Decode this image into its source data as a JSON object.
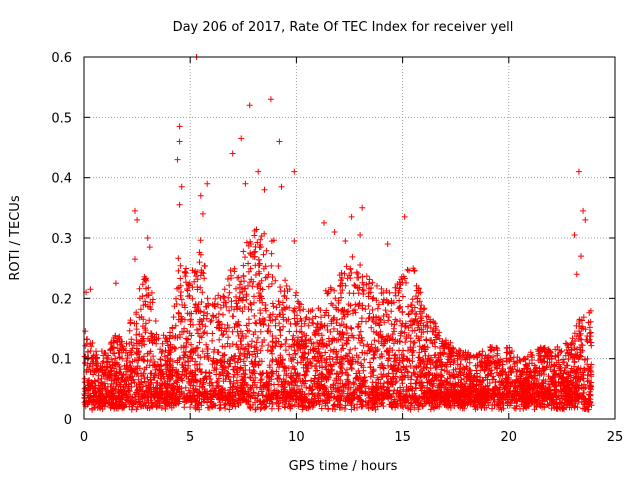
{
  "chart_data": {
    "type": "scatter",
    "title": "Day 206 of 2017, Rate Of TEC Index for receiver yell",
    "xlabel": "GPS time / hours",
    "ylabel": "ROTI / TECUs",
    "xlim": [
      0,
      25
    ],
    "ylim": [
      0,
      0.6
    ],
    "xticks": [
      0,
      5,
      10,
      15,
      20,
      25
    ],
    "yticks": [
      0,
      0.1,
      0.2,
      0.3,
      0.4,
      0.5,
      0.6
    ],
    "grid": true,
    "marker": "+",
    "color": "#ff0000",
    "outliers": [
      {
        "x": 0.1,
        "y": 0.21
      },
      {
        "x": 0.3,
        "y": 0.215
      },
      {
        "x": 1.5,
        "y": 0.225
      },
      {
        "x": 2.4,
        "y": 0.345
      },
      {
        "x": 2.5,
        "y": 0.33
      },
      {
        "x": 2.4,
        "y": 0.265
      },
      {
        "x": 3.0,
        "y": 0.3
      },
      {
        "x": 3.1,
        "y": 0.285
      },
      {
        "x": 4.5,
        "y": 0.485
      },
      {
        "x": 4.5,
        "y": 0.46
      },
      {
        "x": 4.4,
        "y": 0.43
      },
      {
        "x": 4.6,
        "y": 0.385
      },
      {
        "x": 4.5,
        "y": 0.355
      },
      {
        "x": 5.3,
        "y": 0.6
      },
      {
        "x": 5.5,
        "y": 0.37
      },
      {
        "x": 5.8,
        "y": 0.39
      },
      {
        "x": 5.6,
        "y": 0.34
      },
      {
        "x": 7.0,
        "y": 0.44
      },
      {
        "x": 7.4,
        "y": 0.465
      },
      {
        "x": 7.8,
        "y": 0.52
      },
      {
        "x": 7.6,
        "y": 0.39
      },
      {
        "x": 8.2,
        "y": 0.41
      },
      {
        "x": 8.8,
        "y": 0.53
      },
      {
        "x": 9.2,
        "y": 0.46
      },
      {
        "x": 9.3,
        "y": 0.385
      },
      {
        "x": 8.5,
        "y": 0.38
      },
      {
        "x": 9.9,
        "y": 0.41
      },
      {
        "x": 9.9,
        "y": 0.295
      },
      {
        "x": 11.3,
        "y": 0.325
      },
      {
        "x": 11.8,
        "y": 0.31
      },
      {
        "x": 12.3,
        "y": 0.295
      },
      {
        "x": 12.6,
        "y": 0.335
      },
      {
        "x": 13.1,
        "y": 0.35
      },
      {
        "x": 13.0,
        "y": 0.305
      },
      {
        "x": 14.3,
        "y": 0.29
      },
      {
        "x": 15.1,
        "y": 0.335
      },
      {
        "x": 15.5,
        "y": 0.25
      },
      {
        "x": 23.3,
        "y": 0.41
      },
      {
        "x": 23.5,
        "y": 0.345
      },
      {
        "x": 23.6,
        "y": 0.33
      },
      {
        "x": 23.1,
        "y": 0.305
      },
      {
        "x": 23.4,
        "y": 0.27
      },
      {
        "x": 23.2,
        "y": 0.24
      }
    ],
    "envelope": {
      "hours": [
        0,
        0.5,
        1,
        1.5,
        2,
        2.5,
        3,
        3.5,
        4,
        4.5,
        5,
        5.5,
        6,
        6.5,
        7,
        7.5,
        8,
        8.5,
        9,
        9.5,
        10,
        10.5,
        11,
        11.5,
        12,
        12.5,
        13,
        13.5,
        14,
        14.5,
        15,
        15.5,
        16,
        16.5,
        17,
        17.5,
        18,
        18.5,
        19,
        19.5,
        20,
        20.5,
        21,
        21.5,
        22,
        22.5,
        23,
        23.5,
        23.9
      ],
      "typical_max_roti": [
        0.13,
        0.1,
        0.09,
        0.12,
        0.11,
        0.2,
        0.23,
        0.13,
        0.11,
        0.27,
        0.22,
        0.28,
        0.17,
        0.2,
        0.25,
        0.26,
        0.3,
        0.29,
        0.28,
        0.22,
        0.19,
        0.16,
        0.17,
        0.2,
        0.22,
        0.26,
        0.24,
        0.21,
        0.2,
        0.19,
        0.22,
        0.24,
        0.17,
        0.14,
        0.12,
        0.1,
        0.09,
        0.09,
        0.1,
        0.1,
        0.1,
        0.08,
        0.09,
        0.1,
        0.1,
        0.1,
        0.12,
        0.16,
        0.17
      ]
    }
  }
}
